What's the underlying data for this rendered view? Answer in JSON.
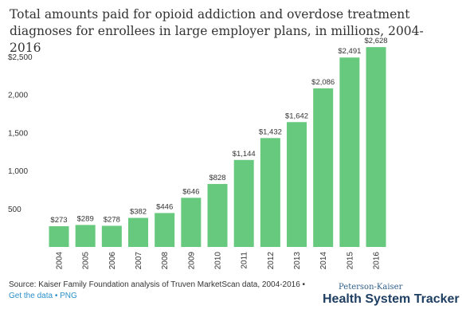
{
  "title": "Total amounts paid for opioid addiction and overdose treatment diagnoses for enrollees in large employer plans, in millions, 2004-2016",
  "source": "Source: Kaiser Family Foundation analysis of Truven MarketScan data, 2004-2016 •",
  "links": {
    "data": "Get the data",
    "sep": " • ",
    "png": "PNG"
  },
  "brand": {
    "small": "Peterson-Kaiser",
    "big": "Health System Tracker"
  },
  "colors": {
    "bar": "#66c97d",
    "text": "#333333",
    "link": "#2a8fc9"
  },
  "chart_data": {
    "type": "bar",
    "categories": [
      "2004",
      "2005",
      "2006",
      "2007",
      "2008",
      "2009",
      "2010",
      "2011",
      "2012",
      "2013",
      "2014",
      "2015",
      "2016"
    ],
    "values": [
      273,
      289,
      278,
      382,
      446,
      646,
      828,
      1144,
      1432,
      1642,
      2086,
      2491,
      2628
    ],
    "data_labels": [
      "$273",
      "$289",
      "$278",
      "$382",
      "$446",
      "$646",
      "$828",
      "$1,144",
      "$1,432",
      "$1,642",
      "$2,086",
      "$2,491",
      "$2,628"
    ],
    "ytick_values": [
      500,
      1000,
      1500,
      2000,
      2500
    ],
    "ytick_labels": [
      "500",
      "1,000",
      "1,500",
      "2,000",
      "$2,500"
    ],
    "ylim": [
      0,
      2750
    ],
    "grid": false
  }
}
